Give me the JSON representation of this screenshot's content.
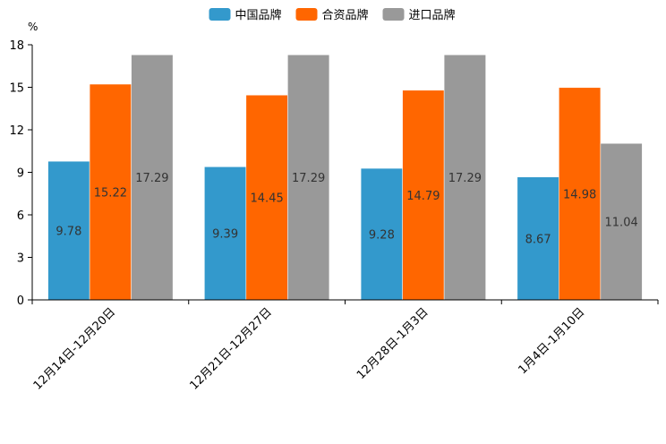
{
  "chart_data": {
    "type": "bar",
    "title": "",
    "xlabel": "",
    "ylabel": "%",
    "ylim": [
      0,
      18
    ],
    "yticks": [
      0,
      3,
      6,
      9,
      12,
      15,
      18
    ],
    "grid": false,
    "legend_position": "top-center",
    "categories": [
      "12月14日-12月20日",
      "12月21日-12月27日",
      "12月28日-1月3日",
      "1月4日-1月10日"
    ],
    "series": [
      {
        "name": "中国品牌",
        "color": "#3399cc",
        "values": [
          9.78,
          9.39,
          9.28,
          8.67
        ]
      },
      {
        "name": "合资品牌",
        "color": "#ff6600",
        "values": [
          15.22,
          14.45,
          14.79,
          14.98
        ]
      },
      {
        "name": "进口品牌",
        "color": "#999999",
        "values": [
          17.29,
          17.29,
          17.29,
          11.04
        ]
      }
    ]
  }
}
